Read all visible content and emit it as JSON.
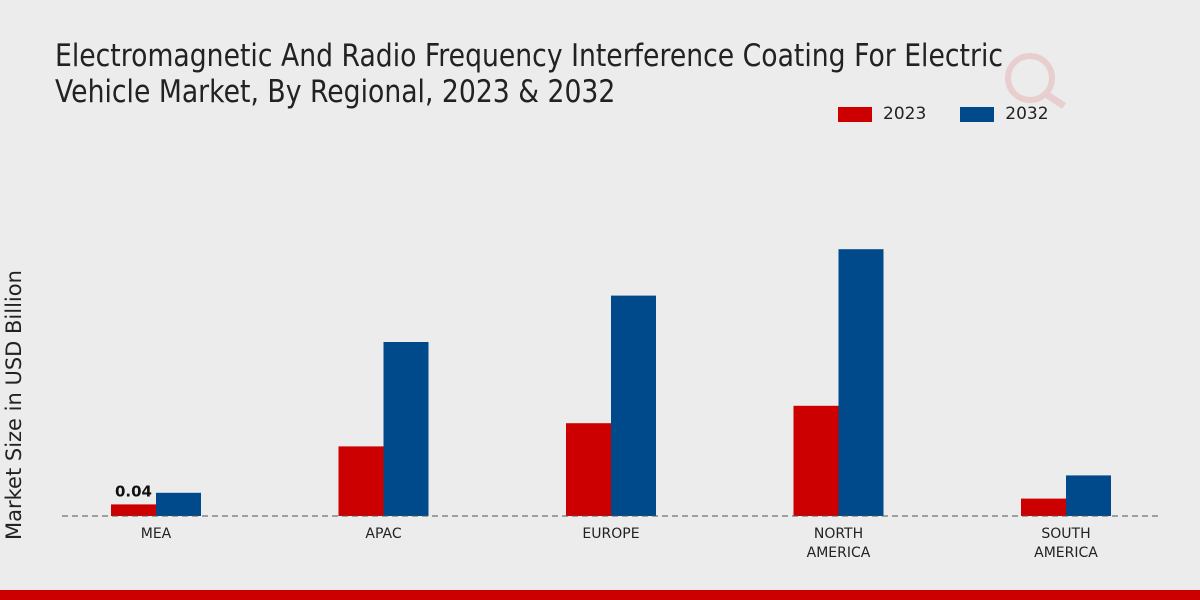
{
  "chart_data": {
    "type": "bar",
    "title_lines": [
      "Electromagnetic And Radio Frequency Interference Coating For Electric",
      "Vehicle Market, By Regional, 2023 & 2032"
    ],
    "ylabel": "Market Size in USD Billion",
    "xlabel": "",
    "categories": [
      [
        "MEA"
      ],
      [
        "APAC"
      ],
      [
        "EUROPE"
      ],
      [
        "NORTH",
        "AMERICA"
      ],
      [
        "SOUTH",
        "AMERICA"
      ]
    ],
    "series": [
      {
        "name": "2023",
        "color": "#cc0000",
        "values": [
          0.04,
          0.24,
          0.32,
          0.38,
          0.06
        ]
      },
      {
        "name": "2032",
        "color": "#004a8c",
        "values": [
          0.08,
          0.6,
          0.76,
          0.92,
          0.14
        ]
      }
    ],
    "data_labels": [
      {
        "series": 0,
        "index": 0,
        "text": "0.04"
      }
    ],
    "ylim": [
      0,
      1.0
    ],
    "grid": false,
    "legend_position": "top-right"
  }
}
